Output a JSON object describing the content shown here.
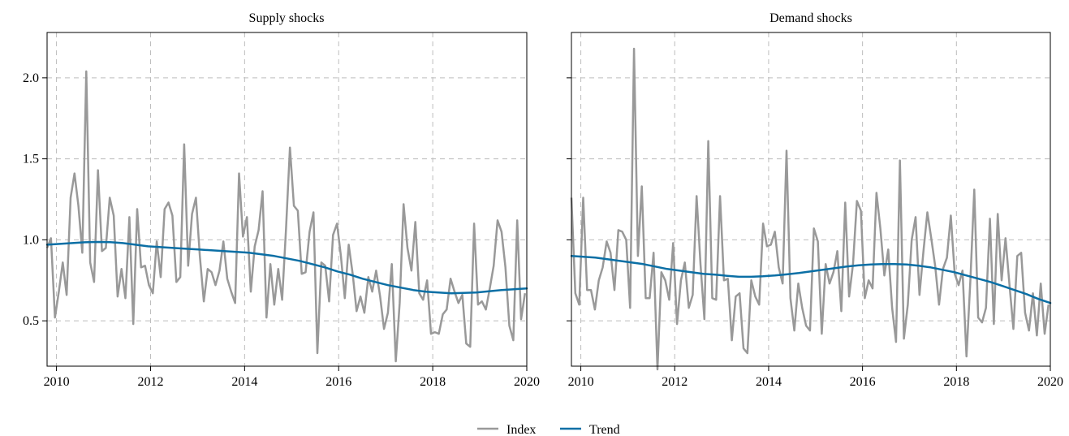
{
  "chart_data": [
    {
      "type": "line",
      "title": "Supply shocks",
      "xlabel": "",
      "ylabel": "",
      "xlim": [
        2009.8,
        2020.0
      ],
      "ylim": [
        0.22,
        2.28
      ],
      "grid": true,
      "x_ticks": [
        2010,
        2012,
        2014,
        2016,
        2018,
        2020
      ],
      "x_tick_labels": [
        "2010",
        "2012",
        "2014",
        "2016",
        "2018",
        "2020"
      ],
      "y_ticks": [
        0.5,
        1.0,
        1.5,
        2.0
      ],
      "y_tick_labels": [
        "0.5",
        "1.0",
        "1.5",
        "2.0"
      ],
      "x_start": 2009.8,
      "x_step": 0.0833,
      "series": [
        {
          "name": "Index",
          "color": "#999999",
          "values": [
            0.95,
            1.01,
            0.52,
            0.68,
            0.86,
            0.66,
            1.26,
            1.41,
            1.21,
            0.92,
            2.04,
            0.86,
            0.74,
            1.43,
            0.93,
            0.95,
            1.26,
            1.15,
            0.65,
            0.82,
            0.64,
            1.14,
            0.48,
            1.19,
            0.83,
            0.84,
            0.72,
            0.67,
            0.99,
            0.77,
            1.19,
            1.23,
            1.15,
            0.74,
            0.77,
            1.59,
            0.84,
            1.16,
            1.26,
            0.9,
            0.62,
            0.82,
            0.8,
            0.72,
            0.81,
            0.99,
            0.76,
            0.68,
            0.61,
            1.41,
            1.02,
            1.14,
            0.68,
            0.96,
            1.06,
            1.3,
            0.52,
            0.85,
            0.6,
            0.82,
            0.63,
            1.07,
            1.57,
            1.21,
            1.18,
            0.79,
            0.8,
            1.05,
            1.17,
            0.3,
            0.86,
            0.84,
            0.62,
            1.03,
            1.1,
            0.9,
            0.64,
            0.97,
            0.79,
            0.56,
            0.65,
            0.55,
            0.77,
            0.68,
            0.81,
            0.65,
            0.45,
            0.55,
            0.85,
            0.25,
            0.61,
            1.22,
            0.95,
            0.81,
            1.11,
            0.67,
            0.63,
            0.75,
            0.42,
            0.43,
            0.42,
            0.54,
            0.57,
            0.76,
            0.68,
            0.61,
            0.66,
            0.36,
            0.34,
            1.1,
            0.6,
            0.62,
            0.57,
            0.7,
            0.84,
            1.12,
            1.05,
            0.83,
            0.47,
            0.38,
            1.12,
            0.51,
            0.67
          ]
        },
        {
          "name": "Trend",
          "color": "#0b6fa5",
          "values": [
            0.97,
            0.975,
            0.98,
            0.985,
            0.987,
            0.986,
            0.98,
            0.97,
            0.96,
            0.955,
            0.95,
            0.945,
            0.94,
            0.935,
            0.93,
            0.925,
            0.92,
            0.91,
            0.9,
            0.885,
            0.87,
            0.85,
            0.83,
            0.805,
            0.785,
            0.76,
            0.74,
            0.72,
            0.705,
            0.69,
            0.68,
            0.675,
            0.67,
            0.672,
            0.675,
            0.682,
            0.69,
            0.695,
            0.7
          ]
        }
      ]
    },
    {
      "type": "line",
      "title": "Demand shocks",
      "xlabel": "",
      "ylabel": "",
      "xlim": [
        2009.8,
        2020.0
      ],
      "ylim": [
        0.22,
        2.28
      ],
      "grid": true,
      "x_ticks": [
        2010,
        2012,
        2014,
        2016,
        2018,
        2020
      ],
      "x_tick_labels": [
        "2010",
        "2012",
        "2014",
        "2016",
        "2018",
        "2020"
      ],
      "y_ticks": [
        0.5,
        1.0,
        1.5,
        2.0
      ],
      "x_start": 2009.8,
      "x_step": 0.0833,
      "series": [
        {
          "name": "Index",
          "color": "#999999",
          "values": [
            1.26,
            0.67,
            0.6,
            1.26,
            0.69,
            0.69,
            0.57,
            0.75,
            0.83,
            0.99,
            0.92,
            0.69,
            1.06,
            1.05,
            1.0,
            0.58,
            2.18,
            0.9,
            1.33,
            0.64,
            0.64,
            0.92,
            0.2,
            0.8,
            0.75,
            0.63,
            0.98,
            0.48,
            0.75,
            0.86,
            0.58,
            0.66,
            1.27,
            0.85,
            0.51,
            1.61,
            0.64,
            0.63,
            1.27,
            0.75,
            0.76,
            0.38,
            0.65,
            0.67,
            0.33,
            0.3,
            0.75,
            0.65,
            0.6,
            1.1,
            0.96,
            0.97,
            1.05,
            0.83,
            0.73,
            1.55,
            0.64,
            0.44,
            0.73,
            0.58,
            0.47,
            0.44,
            1.07,
            0.99,
            0.42,
            0.85,
            0.73,
            0.8,
            0.93,
            0.56,
            1.23,
            0.65,
            0.85,
            1.24,
            1.18,
            0.64,
            0.75,
            0.7,
            1.29,
            1.07,
            0.78,
            0.94,
            0.58,
            0.37,
            1.49,
            0.39,
            0.6,
            1.0,
            1.14,
            0.66,
            0.93,
            1.17,
            1.01,
            0.84,
            0.6,
            0.82,
            0.89,
            1.15,
            0.79,
            0.72,
            0.81,
            0.28,
            0.75,
            1.31,
            0.52,
            0.49,
            0.58,
            1.13,
            0.48,
            1.16,
            0.75,
            1.01,
            0.72,
            0.45,
            0.9,
            0.92,
            0.55,
            0.44,
            0.67,
            0.41,
            0.73,
            0.42,
            0.6
          ]
        },
        {
          "name": "Trend",
          "color": "#0b6fa5",
          "values": [
            0.9,
            0.895,
            0.89,
            0.88,
            0.87,
            0.86,
            0.85,
            0.835,
            0.82,
            0.81,
            0.8,
            0.79,
            0.785,
            0.778,
            0.772,
            0.772,
            0.775,
            0.78,
            0.787,
            0.795,
            0.805,
            0.815,
            0.825,
            0.835,
            0.843,
            0.848,
            0.85,
            0.85,
            0.848,
            0.84,
            0.83,
            0.815,
            0.8,
            0.78,
            0.76,
            0.74,
            0.715,
            0.69,
            0.665,
            0.635,
            0.61
          ]
        }
      ]
    }
  ],
  "legend": {
    "placement": "bottom-center",
    "items": [
      {
        "label": "Index",
        "color": "#999999"
      },
      {
        "label": "Trend",
        "color": "#0b6fa5"
      }
    ]
  }
}
